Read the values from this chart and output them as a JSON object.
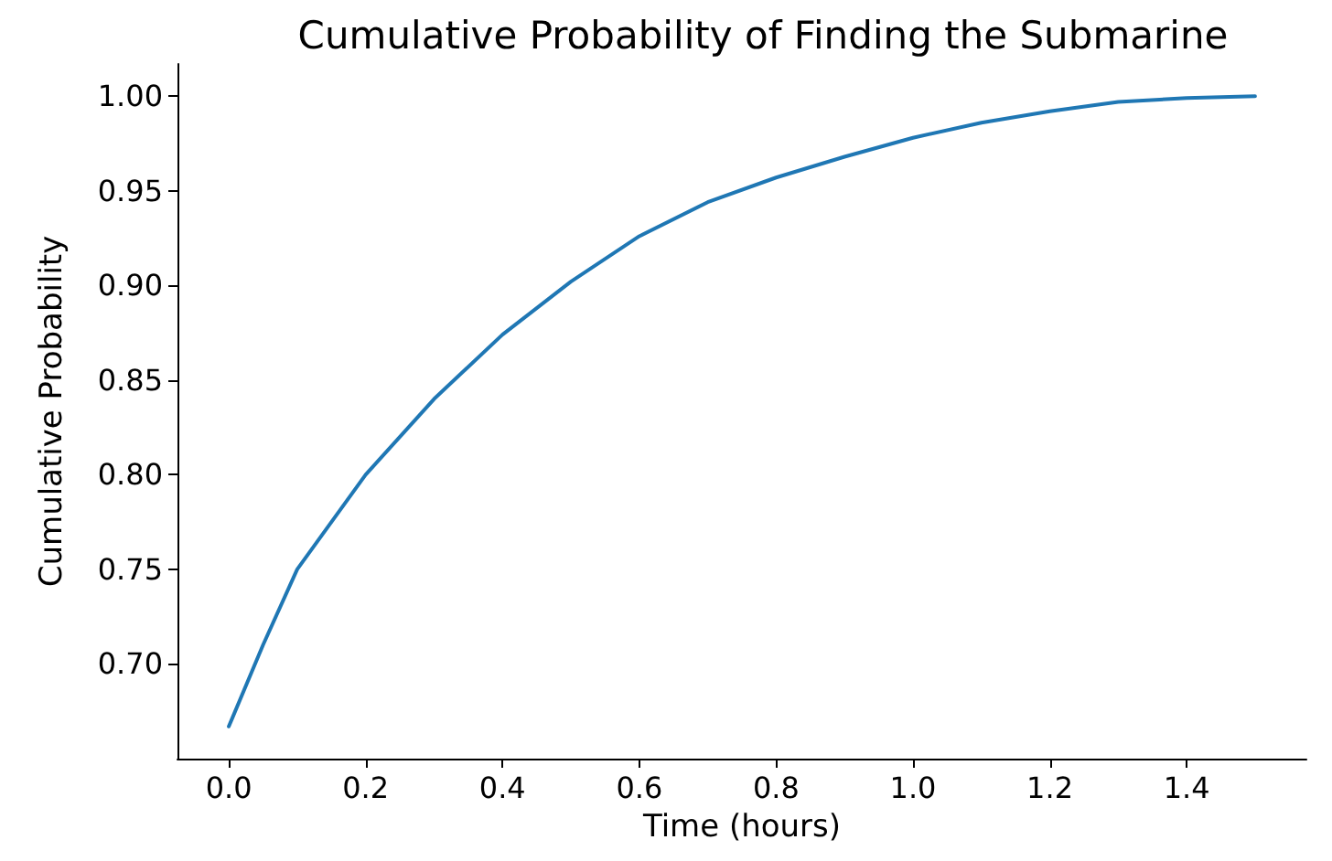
{
  "chart_data": {
    "type": "line",
    "title": "Cumulative Probability of Finding the Submarine",
    "xlabel": "Time (hours)",
    "ylabel": "Cumulative Probability",
    "x": [
      0,
      0.05,
      0.1,
      0.2,
      0.3,
      0.4,
      0.5,
      0.6,
      0.7,
      0.8,
      0.9,
      1.0,
      1.1,
      1.2,
      1.3,
      1.4,
      1.5
    ],
    "series": [
      {
        "color": "#1f77b4",
        "values": [
          0.667,
          0.71,
          0.75,
          0.8,
          0.84,
          0.874,
          0.902,
          0.926,
          0.944,
          0.957,
          0.968,
          0.978,
          0.986,
          0.992,
          0.997,
          0.999,
          1.0
        ]
      }
    ],
    "xlim": [
      -0.075,
      1.575
    ],
    "ylim": [
      0.65,
      1.017
    ],
    "xticks": [
      {
        "value": 0,
        "label": "0.0"
      },
      {
        "value": 0.2,
        "label": "0.2"
      },
      {
        "value": 0.4,
        "label": "0.4"
      },
      {
        "value": 0.6,
        "label": "0.6"
      },
      {
        "value": 0.8,
        "label": "0.8"
      },
      {
        "value": 1,
        "label": "1.0"
      },
      {
        "value": 1.2,
        "label": "1.2"
      },
      {
        "value": 1.4,
        "label": "1.4"
      }
    ],
    "yticks": [
      {
        "value": 0.7,
        "label": "0.70"
      },
      {
        "value": 0.75,
        "label": "0.75"
      },
      {
        "value": 0.8,
        "label": "0.80"
      },
      {
        "value": 0.85,
        "label": "0.85"
      },
      {
        "value": 0.9,
        "label": "0.90"
      },
      {
        "value": 0.95,
        "label": "0.95"
      },
      {
        "value": 1,
        "label": "1.00"
      }
    ],
    "grid": false,
    "marker": "none",
    "line_style": "solid"
  }
}
